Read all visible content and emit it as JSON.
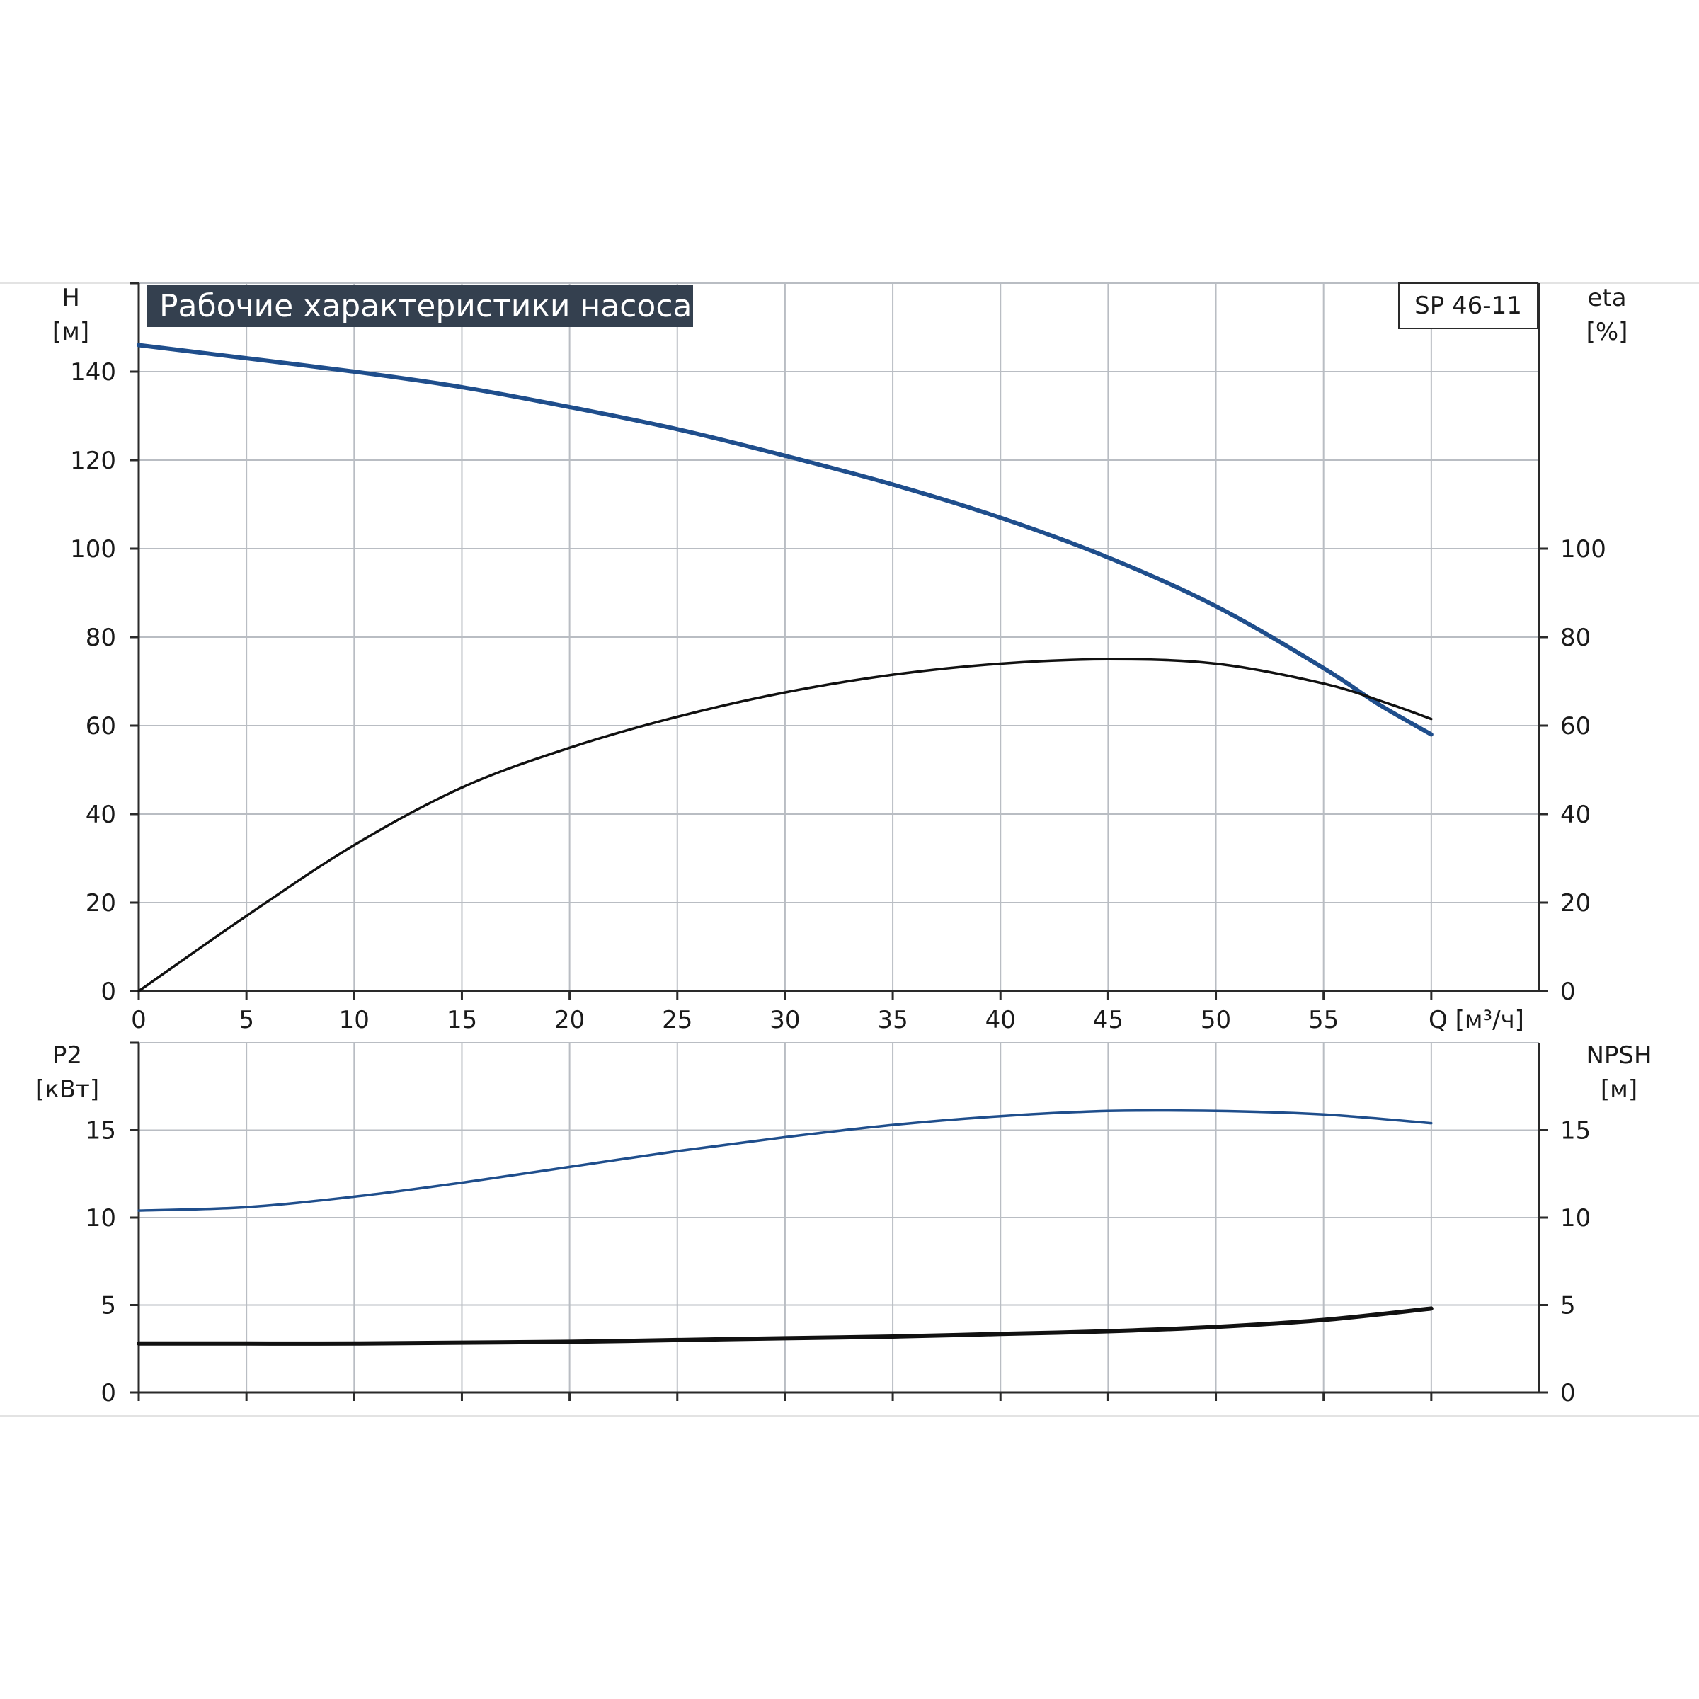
{
  "colors": {
    "blue_curve": "#1f4e8c",
    "black_curve": "#111111",
    "grid": "#b9bdc3",
    "frame": "#2a2a2a",
    "title_bg": "#34404f",
    "title_text": "#ffffff"
  },
  "chart_data": [
    {
      "type": "line",
      "title": "Рабочие характеристики насоса",
      "model_label": "SP 46-11",
      "xlabel": "Q [м³/ч]",
      "xlim": [
        0,
        65
      ],
      "x_ticks": [
        0,
        5,
        10,
        15,
        20,
        25,
        30,
        35,
        40,
        45,
        50,
        55
      ],
      "left_axis": {
        "label_line1": "H",
        "label_line2": "[м]",
        "ylim": [
          0,
          160
        ],
        "ticks": [
          0,
          20,
          40,
          60,
          80,
          100,
          120,
          140
        ]
      },
      "right_axis": {
        "label_line1": "eta",
        "label_line2": "[%]",
        "ylim": [
          0,
          160
        ],
        "ticks": [
          0,
          20,
          40,
          60,
          80,
          100
        ]
      },
      "grid": true,
      "series": [
        {
          "axis": "left",
          "color": "blue_curve",
          "x": [
            0,
            4.2,
            10,
            15,
            20,
            25,
            30,
            35,
            40,
            45,
            50,
            55,
            57.5,
            60
          ],
          "y": [
            146,
            143.5,
            140,
            136.5,
            132,
            127,
            121,
            114.5,
            107,
            98,
            87,
            73,
            65,
            58
          ]
        },
        {
          "axis": "right",
          "color": "black_curve",
          "x": [
            0,
            5,
            10,
            15,
            20,
            25,
            30,
            35,
            40,
            45,
            50,
            55,
            58,
            60
          ],
          "y": [
            0,
            17,
            33,
            46,
            55,
            62,
            67.5,
            71.5,
            74,
            75,
            74,
            69.5,
            65,
            61.5
          ]
        }
      ]
    },
    {
      "type": "line",
      "xlim": [
        0,
        65
      ],
      "x_ticks": [
        0,
        5,
        10,
        15,
        20,
        25,
        30,
        35,
        40,
        45,
        50,
        55
      ],
      "left_axis": {
        "label_line1": "P2",
        "label_line2": "[кВт]",
        "ylim": [
          0,
          20
        ],
        "ticks": [
          0,
          5,
          10,
          15
        ]
      },
      "right_axis": {
        "label_line1": "NPSH",
        "label_line2": "[м]",
        "ylim": [
          0,
          20
        ],
        "ticks": [
          0,
          5,
          10,
          15
        ]
      },
      "grid": true,
      "series": [
        {
          "axis": "left",
          "color": "blue_curve",
          "x": [
            0,
            5,
            10,
            15,
            20,
            25,
            30,
            35,
            40,
            45,
            50,
            55,
            60
          ],
          "y": [
            10.4,
            10.6,
            11.2,
            12.0,
            12.9,
            13.8,
            14.6,
            15.3,
            15.8,
            16.1,
            16.1,
            15.9,
            15.4
          ]
        },
        {
          "axis": "right",
          "color": "black_curve",
          "x": [
            0,
            5,
            10,
            15,
            20,
            25,
            30,
            35,
            40,
            45,
            50,
            55,
            60
          ],
          "y": [
            2.8,
            2.8,
            2.8,
            2.85,
            2.9,
            3.0,
            3.1,
            3.2,
            3.35,
            3.5,
            3.75,
            4.15,
            4.8
          ]
        }
      ]
    }
  ]
}
